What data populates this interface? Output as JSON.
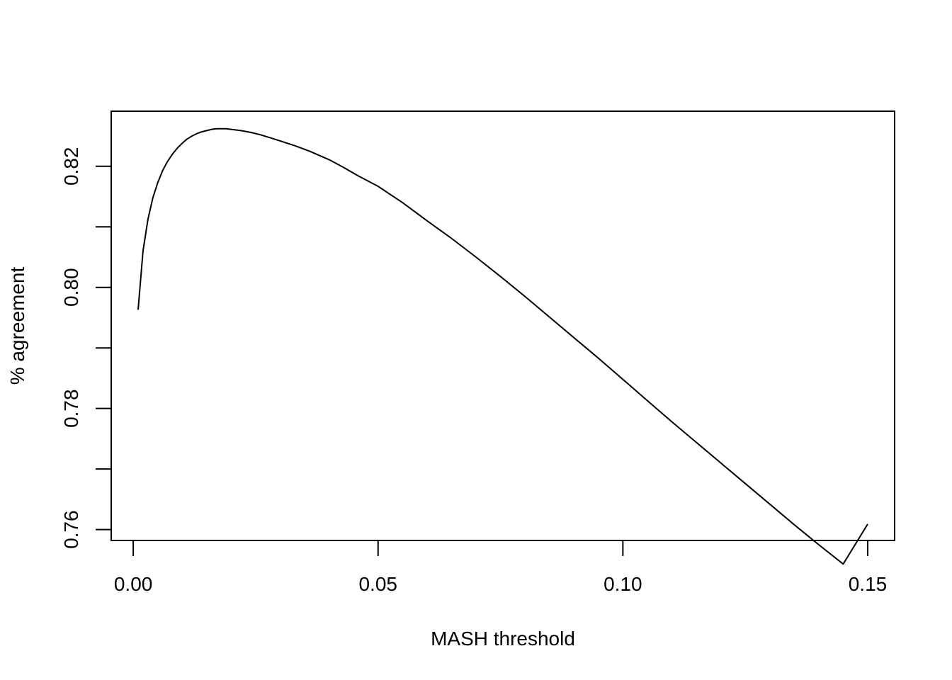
{
  "chart_data": {
    "type": "line",
    "title": "",
    "xlabel": "MASH threshold",
    "ylabel": "% agreement",
    "xlim": [
      -0.0045,
      0.1555
    ],
    "ylim": [
      0.7582,
      0.8291
    ],
    "x_ticks": [
      {
        "value": 0.0,
        "label": "0.00"
      },
      {
        "value": 0.05,
        "label": "0.05"
      },
      {
        "value": 0.1,
        "label": "0.10"
      },
      {
        "value": 0.15,
        "label": "0.15"
      }
    ],
    "y_ticks": [
      {
        "value": 0.76,
        "label": "0.76"
      },
      {
        "value": 0.77,
        "label": ""
      },
      {
        "value": 0.78,
        "label": "0.78"
      },
      {
        "value": 0.79,
        "label": ""
      },
      {
        "value": 0.8,
        "label": "0.80"
      },
      {
        "value": 0.81,
        "label": ""
      },
      {
        "value": 0.82,
        "label": "0.82"
      }
    ],
    "grid": false,
    "legend": "none",
    "series": [
      {
        "color": "#000000",
        "x": [
          0.001,
          0.002,
          0.003,
          0.004,
          0.005,
          0.006,
          0.007,
          0.008,
          0.009,
          0.01,
          0.011,
          0.012,
          0.013,
          0.014,
          0.015,
          0.016,
          0.017,
          0.018,
          0.019,
          0.02,
          0.021,
          0.022,
          0.024,
          0.026,
          0.028,
          0.03,
          0.033,
          0.036,
          0.04,
          0.043,
          0.046,
          0.05,
          0.055,
          0.06,
          0.065,
          0.07,
          0.075,
          0.08,
          0.085,
          0.09,
          0.095,
          0.1,
          0.105,
          0.11,
          0.115,
          0.12,
          0.125,
          0.13,
          0.135,
          0.14,
          0.145,
          0.15
        ],
        "y": [
          0.7963,
          0.806,
          0.8112,
          0.8148,
          0.8173,
          0.8193,
          0.8208,
          0.822,
          0.823,
          0.8238,
          0.8245,
          0.825,
          0.8254,
          0.8257,
          0.8259,
          0.8261,
          0.8262,
          0.8262,
          0.8262,
          0.8261,
          0.826,
          0.8259,
          0.8256,
          0.8252,
          0.8247,
          0.8242,
          0.8234,
          0.8225,
          0.8211,
          0.8198,
          0.8184,
          0.8167,
          0.814,
          0.811,
          0.8081,
          0.805,
          0.8018,
          0.7985,
          0.7951,
          0.7917,
          0.7883,
          0.7848,
          0.7813,
          0.7778,
          0.7744,
          0.771,
          0.7676,
          0.7642,
          0.7608,
          0.7575,
          0.7543,
          0.7609
        ]
      }
    ]
  }
}
